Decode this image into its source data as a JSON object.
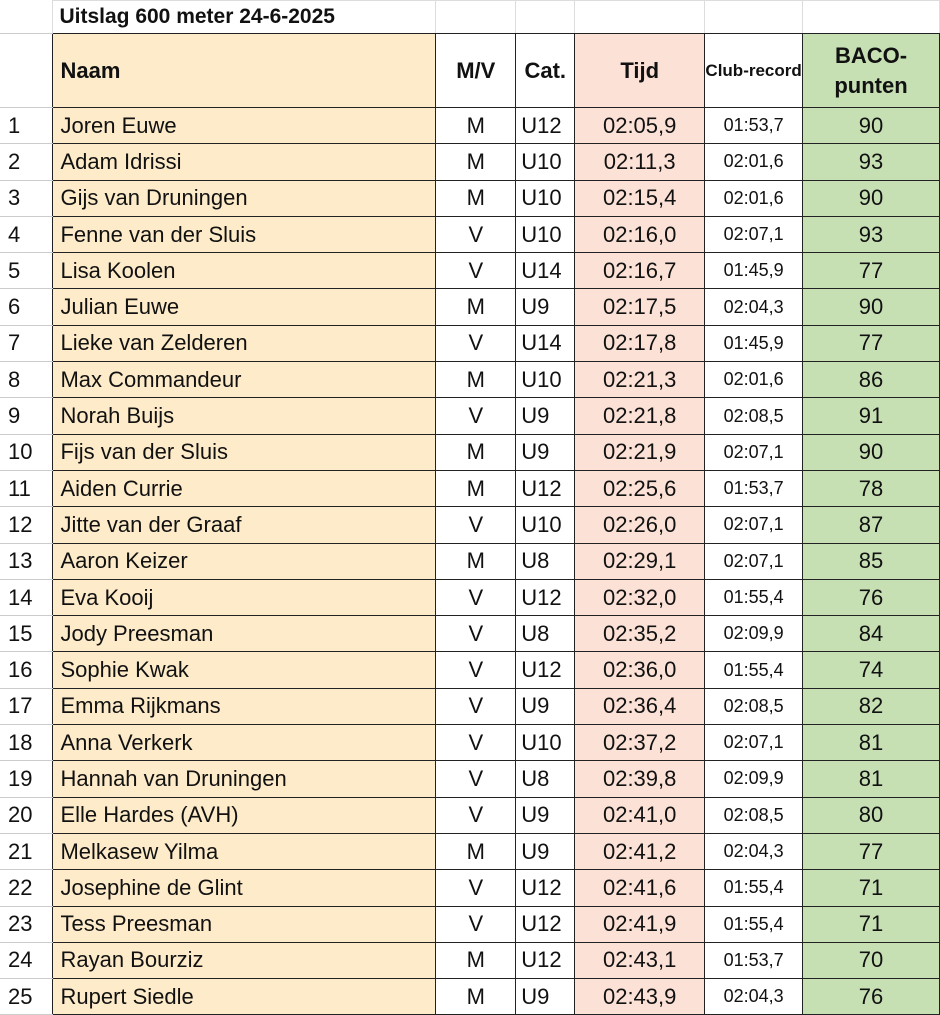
{
  "title": "Uitslag 600 meter 24-6-2025",
  "headers": {
    "naam": "Naam",
    "mv": "M/V",
    "cat": "Cat.",
    "tijd": "Tijd",
    "club": "Club-record",
    "baco": "BACO-punten"
  },
  "colors": {
    "naam_bg": "#fdebc9",
    "tijd_bg": "#fbe1d6",
    "baco_bg": "#c6e0b4"
  },
  "rows": [
    {
      "nr": "1",
      "naam": "Joren Euwe",
      "mv": "M",
      "cat": "U12",
      "tijd": "02:05,9",
      "club": "01:53,7",
      "baco": "90"
    },
    {
      "nr": "2",
      "naam": "Adam Idrissi",
      "mv": "M",
      "cat": "U10",
      "tijd": "02:11,3",
      "club": "02:01,6",
      "baco": "93"
    },
    {
      "nr": "3",
      "naam": "Gijs van Druningen",
      "mv": "M",
      "cat": "U10",
      "tijd": "02:15,4",
      "club": "02:01,6",
      "baco": "90"
    },
    {
      "nr": "4",
      "naam": "Fenne van der Sluis",
      "mv": "V",
      "cat": "U10",
      "tijd": "02:16,0",
      "club": "02:07,1",
      "baco": "93"
    },
    {
      "nr": "5",
      "naam": "Lisa Koolen",
      "mv": "V",
      "cat": "U14",
      "tijd": "02:16,7",
      "club": "01:45,9",
      "baco": "77"
    },
    {
      "nr": "6",
      "naam": "Julian Euwe",
      "mv": "M",
      "cat": "U9",
      "tijd": "02:17,5",
      "club": "02:04,3",
      "baco": "90"
    },
    {
      "nr": "7",
      "naam": "Lieke van Zelderen",
      "mv": "V",
      "cat": "U14",
      "tijd": "02:17,8",
      "club": "01:45,9",
      "baco": "77"
    },
    {
      "nr": "8",
      "naam": "Max Commandeur",
      "mv": "M",
      "cat": "U10",
      "tijd": "02:21,3",
      "club": "02:01,6",
      "baco": "86"
    },
    {
      "nr": "9",
      "naam": "Norah Buijs",
      "mv": "V",
      "cat": "U9",
      "tijd": "02:21,8",
      "club": "02:08,5",
      "baco": "91"
    },
    {
      "nr": "10",
      "naam": "Fijs van der Sluis",
      "mv": "M",
      "cat": "U9",
      "tijd": "02:21,9",
      "club": "02:07,1",
      "baco": "90"
    },
    {
      "nr": "11",
      "naam": "Aiden Currie",
      "mv": "M",
      "cat": "U12",
      "tijd": "02:25,6",
      "club": "01:53,7",
      "baco": "78"
    },
    {
      "nr": "12",
      "naam": "Jitte van der Graaf",
      "mv": "V",
      "cat": "U10",
      "tijd": "02:26,0",
      "club": "02:07,1",
      "baco": "87"
    },
    {
      "nr": "13",
      "naam": "Aaron Keizer",
      "mv": "M",
      "cat": "U8",
      "tijd": "02:29,1",
      "club": "02:07,1",
      "baco": "85"
    },
    {
      "nr": "14",
      "naam": "Eva Kooij",
      "mv": "V",
      "cat": "U12",
      "tijd": "02:32,0",
      "club": "01:55,4",
      "baco": "76"
    },
    {
      "nr": "15",
      "naam": "Jody Preesman",
      "mv": "V",
      "cat": "U8",
      "tijd": "02:35,2",
      "club": "02:09,9",
      "baco": "84"
    },
    {
      "nr": "16",
      "naam": "Sophie Kwak",
      "mv": "V",
      "cat": "U12",
      "tijd": "02:36,0",
      "club": "01:55,4",
      "baco": "74"
    },
    {
      "nr": "17",
      "naam": "Emma Rijkmans",
      "mv": "V",
      "cat": "U9",
      "tijd": "02:36,4",
      "club": "02:08,5",
      "baco": "82"
    },
    {
      "nr": "18",
      "naam": "Anna Verkerk",
      "mv": "V",
      "cat": "U10",
      "tijd": "02:37,2",
      "club": "02:07,1",
      "baco": "81"
    },
    {
      "nr": "19",
      "naam": "Hannah van Druningen",
      "mv": "V",
      "cat": "U8",
      "tijd": "02:39,8",
      "club": "02:09,9",
      "baco": "81"
    },
    {
      "nr": "20",
      "naam": "Elle Hardes (AVH)",
      "mv": "V",
      "cat": "U9",
      "tijd": "02:41,0",
      "club": "02:08,5",
      "baco": "80"
    },
    {
      "nr": "21",
      "naam": "Melkasew Yilma",
      "mv": "M",
      "cat": "U9",
      "tijd": "02:41,2",
      "club": "02:04,3",
      "baco": "77"
    },
    {
      "nr": "22",
      "naam": "Josephine de Glint",
      "mv": "V",
      "cat": "U12",
      "tijd": "02:41,6",
      "club": "01:55,4",
      "baco": "71"
    },
    {
      "nr": "23",
      "naam": "Tess Preesman",
      "mv": "V",
      "cat": "U12",
      "tijd": "02:41,9",
      "club": "01:55,4",
      "baco": "71"
    },
    {
      "nr": "24",
      "naam": "Rayan Bourziz",
      "mv": "M",
      "cat": "U12",
      "tijd": "02:43,1",
      "club": "01:53,7",
      "baco": "70"
    },
    {
      "nr": "25",
      "naam": "Rupert Siedle",
      "mv": "M",
      "cat": "U9",
      "tijd": "02:43,9",
      "club": "02:04,3",
      "baco": "76"
    }
  ]
}
